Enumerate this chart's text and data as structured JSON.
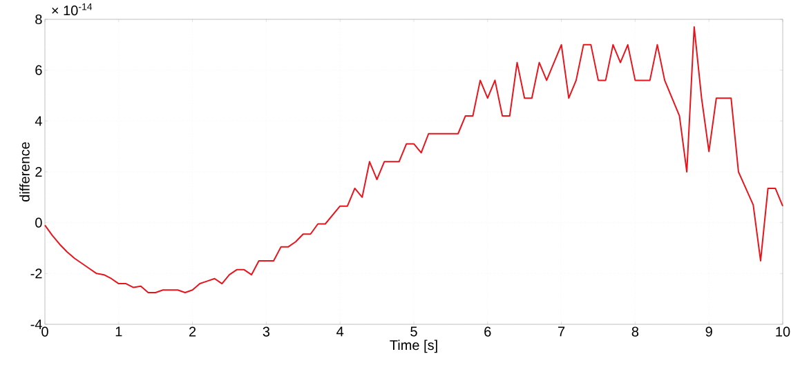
{
  "chart_data": {
    "type": "line",
    "xlabel": "Time [s]",
    "ylabel": "difference",
    "annotations": [
      "× 10$^{-14}$"
    ],
    "xlim": [
      0,
      10
    ],
    "ylim": [
      -4,
      8
    ],
    "xticks": [
      0,
      1,
      2,
      3,
      4,
      5,
      6,
      7,
      8,
      9,
      10
    ],
    "yticks": [
      -4,
      -2,
      0,
      2,
      4,
      6,
      8
    ],
    "grid": true,
    "x": [
      0,
      0.1,
      0.2,
      0.3,
      0.4,
      0.5,
      0.6,
      0.7,
      0.8,
      0.9,
      1.0,
      1.1,
      1.2,
      1.3,
      1.4,
      1.5,
      1.6,
      1.7,
      1.8,
      1.9,
      2.0,
      2.1,
      2.2,
      2.3,
      2.4,
      2.5,
      2.6,
      2.7,
      2.8,
      2.9,
      3.0,
      3.1,
      3.2,
      3.3,
      3.4,
      3.5,
      3.6,
      3.7,
      3.8,
      3.9,
      4.0,
      4.1,
      4.2,
      4.3,
      4.4,
      4.5,
      4.6,
      4.7,
      4.8,
      4.9,
      5.0,
      5.1,
      5.2,
      5.3,
      5.4,
      5.5,
      5.6,
      5.7,
      5.8,
      5.9,
      6.0,
      6.1,
      6.2,
      6.3,
      6.4,
      6.5,
      6.6,
      6.7,
      6.8,
      6.9,
      7.0,
      7.1,
      7.2,
      7.3,
      7.4,
      7.5,
      7.6,
      7.7,
      7.8,
      7.9,
      8.0,
      8.1,
      8.2,
      8.3,
      8.4,
      8.5,
      8.6,
      8.7,
      8.8,
      8.9,
      9.0,
      9.1,
      9.2,
      9.3,
      9.4,
      9.5,
      9.6,
      9.7,
      9.8,
      9.9,
      10.0
    ],
    "series": [
      {
        "color": "#e8141c",
        "values": [
          -0.1,
          -0.5,
          -0.85,
          -1.15,
          -1.4,
          -1.6,
          -1.8,
          -2.0,
          -2.05,
          -2.2,
          -2.4,
          -2.4,
          -2.55,
          -2.5,
          -2.75,
          -2.75,
          -2.65,
          -2.65,
          -2.65,
          -2.75,
          -2.65,
          -2.4,
          -2.3,
          -2.2,
          -2.4,
          -2.05,
          -1.85,
          -1.85,
          -2.05,
          -1.5,
          -1.5,
          -1.5,
          -0.95,
          -0.95,
          -0.75,
          -0.45,
          -0.45,
          -0.05,
          -0.05,
          0.3,
          0.65,
          0.65,
          1.35,
          1.0,
          2.4,
          1.7,
          2.4,
          2.4,
          2.4,
          3.1,
          3.1,
          2.75,
          3.5,
          3.5,
          3.5,
          3.5,
          3.5,
          4.2,
          4.2,
          5.6,
          4.9,
          5.6,
          4.2,
          4.2,
          6.3,
          4.9,
          4.9,
          6.3,
          5.6,
          6.3,
          7.0,
          4.9,
          5.6,
          7.0,
          7.0,
          5.6,
          5.6,
          7.0,
          6.3,
          7.0,
          5.6,
          5.6,
          5.6,
          7.0,
          5.6,
          4.9,
          4.2,
          2.0,
          7.7,
          4.9,
          2.8,
          4.9,
          4.9,
          4.9,
          2.0,
          1.35,
          0.7,
          -1.5,
          1.35,
          1.35,
          0.65
        ]
      }
    ]
  }
}
